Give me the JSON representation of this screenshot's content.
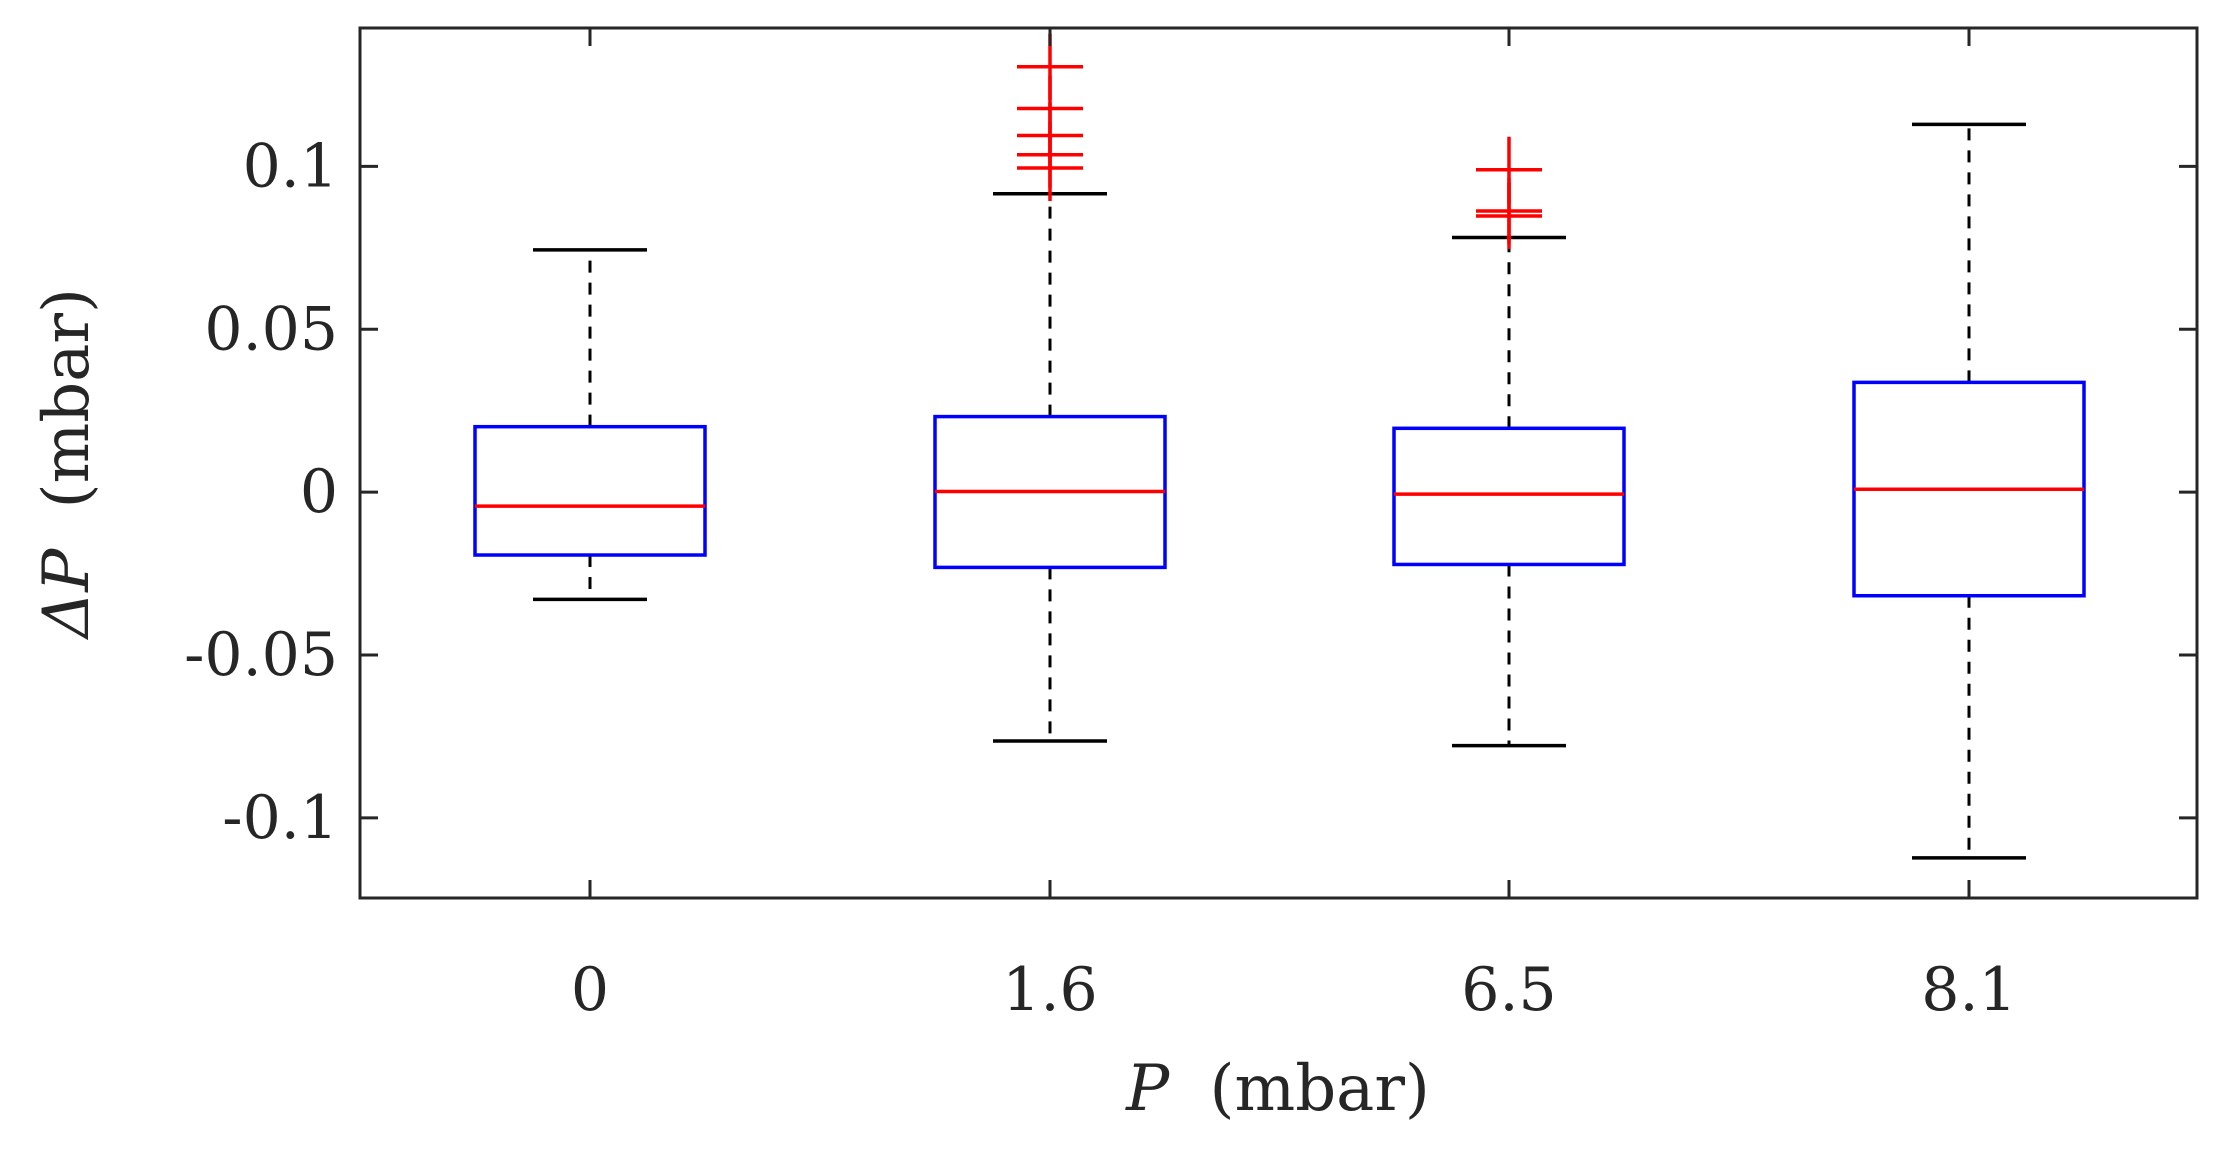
{
  "chart_data": {
    "type": "box",
    "title": "",
    "xlabel": {
      "symbol": "P",
      "unit": "(mbar)"
    },
    "ylabel": {
      "symbol": "ΔP",
      "unit": "(mbar)"
    },
    "categories": [
      "0",
      "1.6",
      "6.5",
      "8.1"
    ],
    "ylim": [
      -0.1246,
      0.1425
    ],
    "yticks": [
      -0.1,
      -0.05,
      0,
      0.05,
      0.1
    ],
    "ytick_labels": [
      "-0.1",
      "-0.05",
      "0",
      "0.05",
      "0.1"
    ],
    "boxes": [
      {
        "category": "0",
        "q1": -0.0193,
        "median": -0.0043,
        "q3": 0.0201,
        "whisker_low": -0.0329,
        "whisker_high": 0.0744,
        "outliers": []
      },
      {
        "category": "1.6",
        "q1": -0.0231,
        "median": 0.0002,
        "q3": 0.0232,
        "whisker_low": -0.0764,
        "whisker_high": 0.0916,
        "outliers": [
          0.1306,
          0.1178,
          0.1095,
          0.1036,
          0.0995
        ]
      },
      {
        "category": "6.5",
        "q1": -0.0222,
        "median": -0.0006,
        "q3": 0.0196,
        "whisker_low": -0.0778,
        "whisker_high": 0.0782,
        "outliers": [
          0.099,
          0.0863,
          0.0848
        ]
      },
      {
        "category": "8.1",
        "q1": -0.0318,
        "median": 0.0009,
        "q3": 0.0337,
        "whisker_low": -0.1123,
        "whisker_high": 0.1129,
        "outliers": []
      }
    ],
    "colors": {
      "box": "#0000ff",
      "median": "#ff0000",
      "outlier": "#ff0000",
      "whisker": "#000000",
      "axis": "#262626"
    },
    "grid": false,
    "legend": "none"
  }
}
